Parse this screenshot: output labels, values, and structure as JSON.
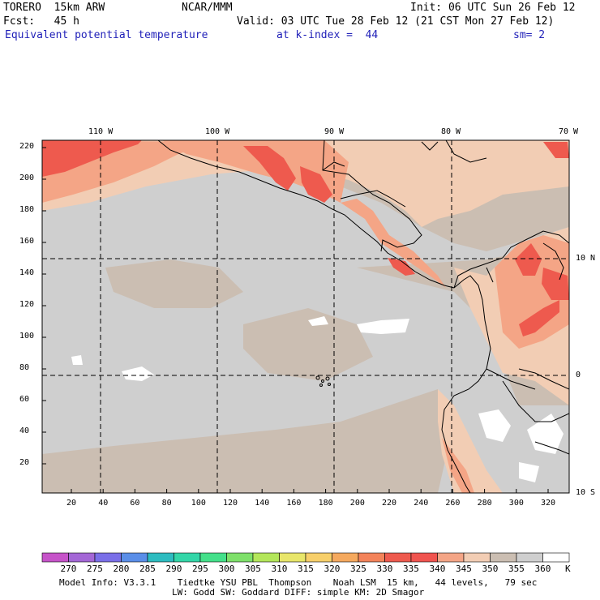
{
  "header": {
    "model": "TORERO  15km ARW",
    "org": "NCAR/MMM",
    "init": "Init: 06 UTC Sun 26 Feb 12",
    "fcst": "Fcst:   45 h",
    "valid": "Valid: 03 UTC Tue 28 Feb 12 (21 CST Mon 27 Feb 12)",
    "field": "Equivalent potential temperature",
    "level": "at k-index =  44",
    "smooth": "sm= 2"
  },
  "colors": {
    "header_blue": "#1f1fb8",
    "ocean_gray": "#cfcfcf",
    "tan": "#cbbeb2",
    "light_peach": "#f2cdb4",
    "salmon": "#f4a586",
    "red": "#ee5a4e",
    "land_line": "#000000"
  },
  "map": {
    "top_lon_labels": [
      "110 W",
      "100 W",
      "90 W",
      "80 W",
      "70 W"
    ],
    "right_lat_labels": [
      "10 N",
      "0",
      "10 S"
    ],
    "left_grid_labels": [
      "220",
      "200",
      "180",
      "160",
      "140",
      "120",
      "100",
      "80",
      "60",
      "40",
      "20"
    ],
    "bottom_grid_labels": [
      "20",
      "40",
      "60",
      "80",
      "100",
      "120",
      "140",
      "160",
      "180",
      "200",
      "220",
      "240",
      "260",
      "280",
      "300",
      "320"
    ]
  },
  "colorbar": {
    "levels": [
      "270",
      "275",
      "280",
      "285",
      "290",
      "295",
      "300",
      "305",
      "310",
      "315",
      "320",
      "325",
      "330",
      "335",
      "340",
      "345",
      "350",
      "355",
      "360"
    ],
    "unit": "K",
    "colors": [
      "#c653c9",
      "#a467d6",
      "#7a6fe8",
      "#5a8ee8",
      "#2dbcc0",
      "#33d6a8",
      "#44e08a",
      "#7ee06a",
      "#b3e65a",
      "#e8e66a",
      "#f7cf6a",
      "#f5a95e",
      "#f3835a",
      "#ee5a4e",
      "#f0544f",
      "#f4a586",
      "#f2cdb4",
      "#cbbeb2",
      "#cfcfcf",
      "#ffffff"
    ]
  },
  "footer": {
    "line1": "Model Info: V3.3.1    Tiedtke YSU PBL  Thompson    Noah LSM  15 km,   44 levels,   79 sec",
    "line2": "LW: Godd SW: Goddard DIFF: simple KM: 2D Smagor"
  }
}
